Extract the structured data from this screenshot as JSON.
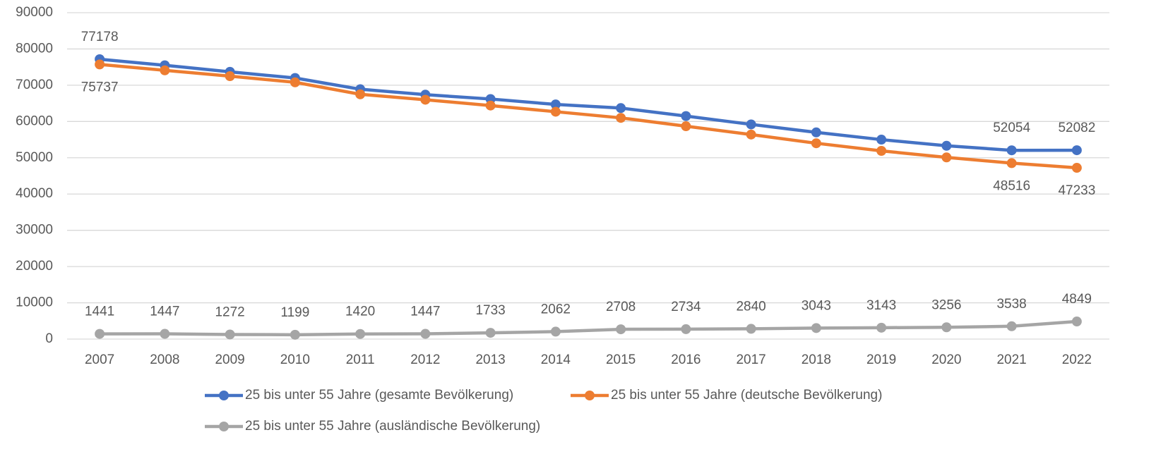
{
  "chart_data": {
    "type": "line",
    "categories": [
      "2007",
      "2008",
      "2009",
      "2010",
      "2011",
      "2012",
      "2013",
      "2014",
      "2015",
      "2016",
      "2017",
      "2018",
      "2019",
      "2020",
      "2021",
      "2022"
    ],
    "series": [
      {
        "name": "25 bis unter 55 Jahre (gesamte Bevölkerung)",
        "color": "#4472c4",
        "label_position": "above",
        "values": [
          77178,
          75500,
          73700,
          72000,
          68900,
          67400,
          66200,
          64700,
          63700,
          61500,
          59200,
          57000,
          55000,
          53300,
          52054,
          52082
        ],
        "value_labels": [
          77178,
          null,
          null,
          null,
          null,
          null,
          null,
          null,
          null,
          null,
          null,
          null,
          null,
          null,
          52054,
          52082
        ]
      },
      {
        "name": "25 bis unter 55 Jahre (deutsche Bevölkerung)",
        "color": "#ed7d31",
        "label_position": "below",
        "values": [
          75737,
          74100,
          72500,
          70800,
          67500,
          66000,
          64400,
          62700,
          61000,
          58700,
          56400,
          54000,
          51900,
          50100,
          48516,
          47233
        ],
        "value_labels": [
          75737,
          null,
          null,
          null,
          null,
          null,
          null,
          null,
          null,
          null,
          null,
          null,
          null,
          null,
          48516,
          47233
        ]
      },
      {
        "name": "25 bis unter 55 Jahre (ausländische Bevölkerung)",
        "color": "#a5a5a5",
        "label_position": "above",
        "values": [
          1441,
          1447,
          1272,
          1199,
          1420,
          1447,
          1733,
          2062,
          2708,
          2734,
          2840,
          3043,
          3143,
          3256,
          3538,
          4849
        ],
        "value_labels": [
          1441,
          1447,
          1272,
          1199,
          1420,
          1447,
          1733,
          2062,
          2708,
          2734,
          2840,
          3043,
          3143,
          3256,
          3538,
          4849
        ]
      }
    ],
    "ylim": [
      0,
      90000
    ],
    "yticks": [
      0,
      10000,
      20000,
      30000,
      40000,
      50000,
      60000,
      70000,
      80000,
      90000
    ],
    "grid": true,
    "legend": "bottom"
  }
}
